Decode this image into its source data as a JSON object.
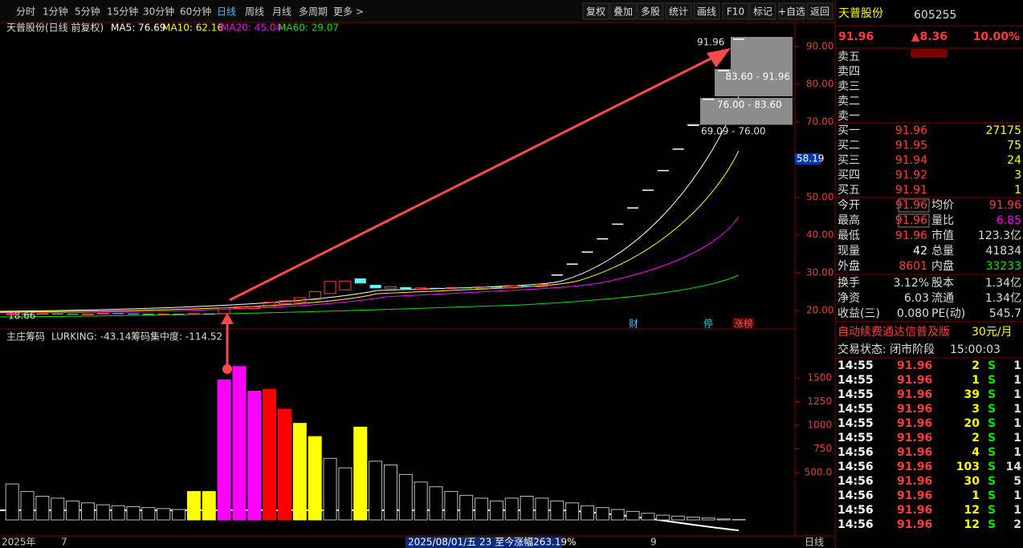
{
  "toolbar": {
    "periods": [
      "分时",
      "1分钟",
      "5分钟",
      "15分钟",
      "30分钟",
      "60分钟",
      "日线",
      "周线",
      "月线",
      "多周期",
      "更多 >"
    ],
    "actions": [
      "复权",
      "叠加",
      "多股",
      "统计",
      "画线",
      "F10",
      "标记",
      "+自选",
      "返回"
    ]
  },
  "price_chart": {
    "title": "天普股份(日线 前复权)",
    "ma_labels": [
      "MA5: 76.69",
      "MA10: 62.16",
      "MA20: 45.04",
      "MA60: 29.07"
    ],
    "yticks": [
      {
        "value": 20,
        "label": "20.00"
      },
      {
        "value": 30,
        "label": "30.00"
      },
      {
        "value": 40,
        "label": "40.00"
      },
      {
        "value": 50,
        "label": "50.00"
      },
      {
        "value": 70,
        "label": "70.00"
      },
      {
        "value": 80,
        "label": "80.00"
      },
      {
        "value": 90,
        "label": "90.00"
      }
    ],
    "current_label": "58.19",
    "low_label": "18.66",
    "chip_labels": [
      "91.96",
      "83.60 - 91.96",
      "76.00 - 83.60",
      "69.09 - 76.00"
    ],
    "events": [
      "财",
      "停",
      "涨榜"
    ],
    "candles": [
      [
        19.0,
        19.1
      ],
      [
        19.1,
        19.0
      ],
      [
        19.0,
        19.2
      ],
      [
        19.2,
        19.1
      ],
      [
        19.1,
        19.0
      ],
      [
        19.0,
        19.1
      ],
      [
        19.1,
        19.3
      ],
      [
        19.3,
        19.2
      ],
      [
        19.2,
        19.1
      ],
      [
        19.1,
        19.0
      ],
      [
        19.0,
        19.1
      ],
      [
        19.1,
        19.0
      ],
      [
        19.0,
        19.2
      ],
      [
        19.2,
        19.1
      ],
      [
        19.2,
        20.7
      ],
      [
        20.6,
        21.0
      ],
      [
        20.5,
        21.0
      ],
      [
        20.8,
        22.2
      ],
      [
        21.8,
        22.6
      ],
      [
        22.2,
        23.4
      ],
      [
        22.8,
        25.0
      ],
      [
        24.5,
        27.7
      ],
      [
        25.5,
        27.8
      ],
      [
        28.5,
        27.2
      ],
      [
        26.8,
        25.9
      ],
      [
        25.8,
        26.3
      ],
      [
        26.2,
        25.7
      ],
      [
        25.6,
        26.0
      ],
      [
        26.0,
        25.8
      ],
      [
        25.8,
        26.1
      ],
      [
        26.1,
        25.9
      ],
      [
        25.9,
        26.3
      ],
      [
        26.3,
        26.1
      ],
      [
        26.0,
        26.6
      ],
      [
        26.5,
        26.3
      ],
      [
        26.3,
        26.9
      ],
      [
        29.4,
        29.4
      ],
      [
        32.3,
        32.3
      ],
      [
        35.5,
        35.5
      ],
      [
        39.0,
        39.0
      ],
      [
        42.9,
        42.9
      ],
      [
        47.2,
        47.2
      ],
      [
        51.9,
        51.9
      ],
      [
        57.1,
        57.1
      ],
      [
        62.8,
        62.8
      ],
      [
        69.09,
        69.09
      ],
      [
        76.0,
        76.0
      ],
      [
        83.6,
        83.6
      ],
      [
        91.96,
        91.96
      ]
    ]
  },
  "indicator": {
    "title": "主庄筹码",
    "lurking": "LURKING: -43.14",
    "concentration": "筹码集中度: -114.52",
    "yticks": [
      {
        "value": 500,
        "label": "500.0"
      },
      750,
      1000,
      1250,
      1500
    ],
    "values": [
      380,
      300,
      250,
      230,
      200,
      180,
      160,
      150,
      140,
      130,
      120,
      110,
      300,
      300,
      1480,
      1620,
      1360,
      1380,
      1170,
      1020,
      880,
      650,
      550,
      980,
      620,
      580,
      480,
      400,
      350,
      300,
      260,
      230,
      200,
      230,
      250,
      230,
      200,
      180,
      150,
      130,
      110,
      90,
      70,
      50,
      40,
      30,
      20,
      10,
      5
    ],
    "colors": [
      "#000000",
      "#000000",
      "#000000",
      "#000000",
      "#000000",
      "#000000",
      "#000000",
      "#000000",
      "#000000",
      "#000000",
      "#000000",
      "#000000",
      "#ffff00",
      "#ffff00",
      "#ff00ff",
      "#ff00ff",
      "#ff00ff",
      "#ff0000",
      "#ff0000",
      "#ffff00",
      "#ffff00",
      "#000000",
      "#000000",
      "#ffff00",
      "#000000",
      "#000000",
      "#000000",
      "#000000",
      "#000000",
      "#000000",
      "#000000",
      "#000000",
      "#000000",
      "#000000",
      "#000000",
      "#000000",
      "#000000",
      "#000000",
      "#000000",
      "#000000",
      "#000000",
      "#000000",
      "#000000",
      "#000000",
      "#000000",
      "#000000",
      "#000000",
      "#000000",
      "#000000"
    ]
  },
  "timeline": [
    "2025年",
    "7",
    "2025/08/01/五 23 至今涨幅263.19%",
    "9"
  ],
  "period_label": "日线",
  "quote": {
    "name": "天普股份",
    "code": "605255",
    "price": "91.96",
    "change": "▲8.36",
    "pct": "10.00%",
    "asks": [
      "卖五",
      "卖四",
      "卖三",
      "卖二",
      "卖一"
    ],
    "bids": [
      [
        "买一",
        "91.96",
        "27175"
      ],
      [
        "买二",
        "91.95",
        "75"
      ],
      [
        "买三",
        "91.94",
        "24"
      ],
      [
        "买四",
        "91.92",
        "3"
      ],
      [
        "买五",
        "91.91",
        "1"
      ]
    ],
    "stats": [
      [
        "今开",
        "91.96",
        "均价",
        "91.96"
      ],
      [
        "最高",
        "91.96",
        "量比",
        "6.85"
      ],
      [
        "最低",
        "91.96",
        "市值",
        "123.3亿"
      ],
      [
        "现量",
        "42",
        "总量",
        "41834"
      ],
      [
        "外盘",
        "8601",
        "内盘",
        "33233"
      ]
    ],
    "stats2": [
      [
        "换手",
        "3.12%",
        "股本",
        "1.34亿"
      ],
      [
        "净资",
        "6.03",
        "流通",
        "1.34亿"
      ],
      [
        "收益(三)",
        "0.080",
        "PE(动)",
        "545.7"
      ]
    ],
    "promo": "自动续费通达信普及版",
    "promo_price": "30元/月",
    "status": "交易状态: 闭市阶段",
    "status_time": "15:00:03",
    "trades": [
      [
        "14:55",
        "91.96",
        "2",
        "S",
        "1"
      ],
      [
        "14:55",
        "91.96",
        "1",
        "S",
        "1"
      ],
      [
        "14:55",
        "91.96",
        "39",
        "S",
        "1"
      ],
      [
        "14:55",
        "91.96",
        "3",
        "S",
        "1"
      ],
      [
        "14:55",
        "91.96",
        "20",
        "S",
        "1"
      ],
      [
        "14:55",
        "91.96",
        "2",
        "S",
        "1"
      ],
      [
        "14:56",
        "91.96",
        "4",
        "S",
        "1"
      ],
      [
        "14:56",
        "91.96",
        "103",
        "S",
        "14"
      ],
      [
        "14:56",
        "91.96",
        "30",
        "S",
        "5"
      ],
      [
        "14:56",
        "91.96",
        "1",
        "S",
        "1"
      ],
      [
        "14:56",
        "91.96",
        "12",
        "S",
        "1"
      ],
      [
        "14:56",
        "91.96",
        "12",
        "S",
        "2"
      ]
    ]
  }
}
